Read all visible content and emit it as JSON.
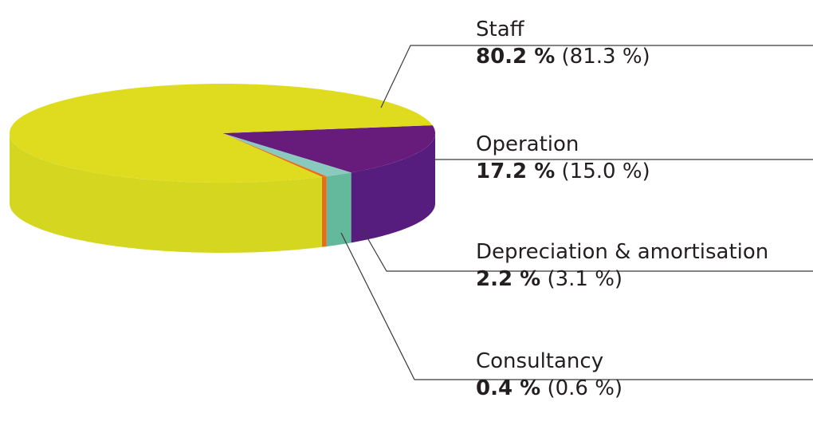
{
  "chart_data": {
    "type": "pie",
    "style": "3d",
    "title": "",
    "slices": [
      {
        "label": "Operation",
        "value": 17.2,
        "prev_text": "(15.0 %)",
        "value_text": "17.2  %",
        "top_color": "#671b7b",
        "side_color": "#561d7f"
      },
      {
        "label": "Depreciation & amortisation",
        "value": 2.2,
        "prev_text": "(3.1 %)",
        "value_text": "2.2 %",
        "top_color": "#8ac9bd",
        "side_color": "#64b89c"
      },
      {
        "label": "Consultancy",
        "value": 0.4,
        "prev_text": "(0.6 %)",
        "value_text": "0.4 %",
        "top_color": "#e2701a",
        "side_color": "#e2701a"
      },
      {
        "label": "Staff",
        "value": 80.2,
        "prev_text": "(81.3 %)",
        "value_text": "80.2  %",
        "top_color": "#dfdc1f",
        "side_color": "#d4d620"
      }
    ],
    "previous_values": [
      15.0,
      3.1,
      0.6,
      81.3
    ]
  }
}
